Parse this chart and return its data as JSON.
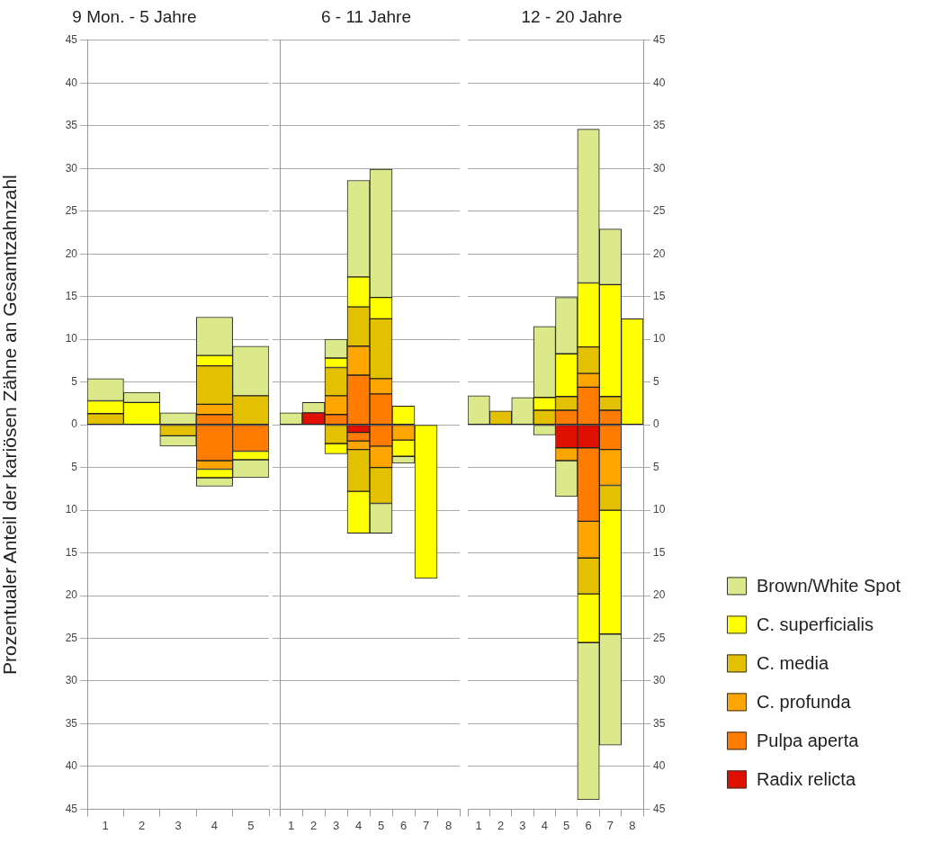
{
  "chart_data": [
    {
      "type": "bar",
      "stacked": true,
      "title": "9 Mon. - 5 Jahre",
      "ylabel": "Prozentualer Anteil der kariösen Zähne an Gesamtzahnzahl",
      "categories": [
        "1",
        "2",
        "3",
        "4",
        "5"
      ],
      "ylim": [
        -45,
        45
      ],
      "yticks": [
        45,
        40,
        35,
        30,
        25,
        20,
        15,
        10,
        5,
        0,
        {
          "value": -5,
          "label": "5"
        },
        {
          "value": -10,
          "label": "10"
        },
        {
          "value": -15,
          "label": "15"
        },
        {
          "value": -20,
          "label": "20"
        },
        {
          "value": -25,
          "label": "25"
        },
        {
          "value": -30,
          "label": "30"
        },
        {
          "value": -35,
          "label": "35"
        },
        {
          "value": -40,
          "label": "40"
        },
        {
          "value": -45,
          "label": "45"
        }
      ],
      "grid": "y",
      "series": [
        {
          "color": "#ff7c00",
          "values": [
            null,
            null,
            null,
            -4.2,
            -3.1
          ]
        },
        {
          "color": "#ffa500",
          "values": [
            null,
            null,
            null,
            -1.0,
            null
          ]
        },
        {
          "color": "#e3c000",
          "values": [
            null,
            null,
            -1.3,
            null,
            null
          ]
        },
        {
          "color": "#ffff00",
          "values": [
            null,
            null,
            null,
            -1.0,
            -1.0
          ]
        },
        {
          "color": "#dce98a",
          "values": [
            null,
            null,
            -1.2,
            -1.0,
            -2.1
          ]
        },
        {
          "color": "#ff7c00",
          "values": [
            null,
            null,
            null,
            1.2,
            null
          ]
        },
        {
          "color": "#ffa500",
          "values": [
            null,
            null,
            null,
            1.2,
            null
          ]
        },
        {
          "color": "#e3c000",
          "values": [
            1.3,
            null,
            null,
            4.5,
            3.4
          ]
        },
        {
          "color": "#ffff00",
          "values": [
            1.5,
            2.6,
            null,
            1.2,
            null
          ]
        },
        {
          "color": "#dce98a",
          "values": [
            2.6,
            1.2,
            1.4,
            4.5,
            5.8
          ]
        }
      ]
    },
    {
      "type": "bar",
      "stacked": true,
      "title": "6 - 11 Jahre",
      "categories": [
        "1",
        "2",
        "3",
        "4",
        "5",
        "6",
        "7",
        "8"
      ],
      "ylim": [
        -45,
        45
      ],
      "yticks": [
        {
          "value": 45,
          "label": null
        },
        {
          "value": 40,
          "label": null
        },
        {
          "value": 35,
          "label": null
        },
        {
          "value": 30,
          "label": null
        },
        {
          "value": 25,
          "label": null
        },
        {
          "value": 20,
          "label": null
        },
        {
          "value": 15,
          "label": null
        },
        {
          "value": 10,
          "label": null
        },
        {
          "value": 5,
          "label": null
        },
        {
          "value": 0,
          "label": null
        },
        {
          "value": -5,
          "label": null
        },
        {
          "value": -10,
          "label": null
        },
        {
          "value": -15,
          "label": null
        },
        {
          "value": -20,
          "label": null
        },
        {
          "value": -25,
          "label": null
        },
        {
          "value": -30,
          "label": null
        },
        {
          "value": -35,
          "label": null
        },
        {
          "value": -40,
          "label": null
        },
        {
          "value": -45,
          "label": null
        }
      ],
      "grid": "y",
      "tick_labels": "x",
      "series": [
        {
          "color": "#e01000",
          "values": [
            null,
            null,
            null,
            -0.9,
            null,
            null,
            null,
            null
          ]
        },
        {
          "color": "#ff7c00",
          "values": [
            null,
            null,
            null,
            -1.0,
            -2.5,
            null,
            null,
            null
          ]
        },
        {
          "color": "#ffa500",
          "values": [
            null,
            null,
            null,
            -1.0,
            -2.5,
            -1.8,
            null,
            null
          ]
        },
        {
          "color": "#e3c000",
          "values": [
            null,
            null,
            -2.2,
            -4.9,
            -4.2,
            null,
            null,
            null
          ]
        },
        {
          "color": "#ffff00",
          "values": [
            null,
            null,
            -1.2,
            -4.9,
            null,
            -1.9,
            -18.0,
            null
          ]
        },
        {
          "color": "#dce98a",
          "values": [
            null,
            null,
            null,
            null,
            -3.5,
            -0.8,
            null,
            null
          ]
        },
        {
          "color": "#e01000",
          "values": [
            null,
            1.4,
            null,
            null,
            null,
            null,
            null,
            null
          ]
        },
        {
          "color": "#ff7c00",
          "values": [
            null,
            null,
            1.2,
            5.8,
            3.6,
            null,
            null,
            null
          ]
        },
        {
          "color": "#ffa500",
          "values": [
            null,
            null,
            2.2,
            3.4,
            1.8,
            null,
            null,
            null
          ]
        },
        {
          "color": "#e3c000",
          "values": [
            null,
            null,
            3.3,
            4.6,
            7.0,
            null,
            null,
            null
          ]
        },
        {
          "color": "#ffff00",
          "values": [
            null,
            null,
            1.1,
            3.5,
            2.5,
            2.2,
            null,
            null
          ]
        },
        {
          "color": "#dce98a",
          "values": [
            1.4,
            1.2,
            2.2,
            11.3,
            15.0,
            null,
            null,
            null
          ]
        }
      ]
    },
    {
      "type": "bar",
      "stacked": true,
      "title": "12 - 20 Jahre",
      "categories": [
        "1",
        "2",
        "3",
        "4",
        "5",
        "6",
        "7",
        "8"
      ],
      "y2lim": [
        -45,
        45
      ],
      "y2ticks": [
        45,
        40,
        35,
        30,
        25,
        20,
        15,
        10,
        5,
        0,
        {
          "value": -5,
          "label": "5"
        },
        {
          "value": -10,
          "label": "10"
        },
        {
          "value": -15,
          "label": "15"
        },
        {
          "value": -20,
          "label": "20"
        },
        {
          "value": -25,
          "label": "25"
        },
        {
          "value": -30,
          "label": "30"
        },
        {
          "value": -35,
          "label": "35"
        },
        {
          "value": -40,
          "label": "40"
        },
        {
          "value": -45,
          "label": "45"
        }
      ],
      "grid": "y",
      "legend": "bottom right",
      "series": [
        {
          "name": "Radix relicta",
          "axis": "y2",
          "color": "#e01000",
          "values": [
            null,
            null,
            null,
            null,
            -2.7,
            -2.7,
            null,
            null
          ]
        },
        {
          "axis": "y2",
          "color": "#ff7c00",
          "values": [
            null,
            null,
            null,
            null,
            null,
            -8.6,
            -2.9,
            null
          ]
        },
        {
          "axis": "y2",
          "color": "#ffa500",
          "values": [
            null,
            null,
            null,
            null,
            -1.5,
            -4.3,
            -4.2,
            null
          ]
        },
        {
          "axis": "y2",
          "color": "#e3c000",
          "values": [
            null,
            null,
            null,
            null,
            null,
            -4.2,
            -2.9,
            null
          ]
        },
        {
          "axis": "y2",
          "color": "#ffff00",
          "values": [
            null,
            null,
            null,
            null,
            null,
            -5.7,
            -14.5,
            null
          ]
        },
        {
          "axis": "y2",
          "color": "#dce98a",
          "values": [
            null,
            null,
            null,
            -1.2,
            -4.2,
            -18.4,
            -13.0,
            null
          ]
        },
        {
          "name": "Pulpa aperta",
          "axis": "y2",
          "color": "#ff7c00",
          "values": [
            null,
            null,
            null,
            null,
            1.7,
            4.4,
            1.7,
            null
          ]
        },
        {
          "name": "C. profunda",
          "axis": "y2",
          "color": "#ffa500",
          "values": [
            null,
            null,
            null,
            null,
            null,
            1.6,
            null,
            null
          ]
        },
        {
          "name": "C. media",
          "axis": "y2",
          "color": "#e3c000",
          "values": [
            null,
            1.6,
            null,
            1.7,
            1.6,
            3.1,
            1.6,
            null
          ]
        },
        {
          "name": "C. superficialis",
          "axis": "y2",
          "color": "#ffff00",
          "values": [
            null,
            null,
            null,
            1.5,
            5.0,
            7.5,
            13.1,
            12.4
          ]
        },
        {
          "name": "Brown/White Spot",
          "axis": "y2",
          "color": "#dce98a",
          "values": [
            3.4,
            null,
            3.2,
            8.3,
            6.6,
            18.0,
            6.5,
            null
          ]
        }
      ]
    }
  ]
}
